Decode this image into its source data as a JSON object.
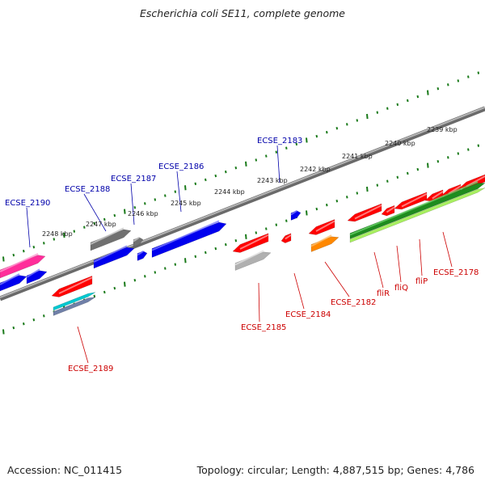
{
  "title": "Escherichia coli SE11, complete genome",
  "footer": {
    "accession": "Accession: NC_011415",
    "summary": "Topology: circular; Length: 4,887,515 bp; Genes: 4,786"
  },
  "colors": {
    "forward_label": "#0000aa",
    "reverse_label": "#cc0000",
    "backbone": "#888888",
    "tick": "#1a7a1a"
  },
  "ruler_labels": [
    "2248 kbp",
    "2247 kbp",
    "2246 kbp",
    "2245 kbp",
    "2244 kbp",
    "2243 kbp",
    "2242 kbp",
    "2241 kbp",
    "2240 kbp",
    "2239 kbp"
  ],
  "forward_labels": [
    "ECSE_2190",
    "ECSE_2188",
    "ECSE_2187",
    "ECSE_2186",
    "ECSE_2183"
  ],
  "reverse_labels": [
    "ECSE_2189",
    "ECSE_2185",
    "ECSE_2184",
    "ECSE_2182",
    "fliR",
    "fliQ",
    "fliP",
    "ECSE_2178"
  ]
}
